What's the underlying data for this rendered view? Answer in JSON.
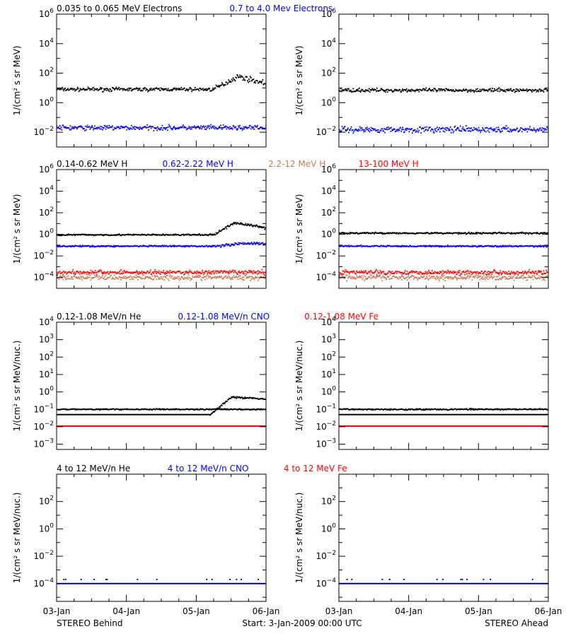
{
  "colors": {
    "black": "#000000",
    "blue": "#0000ff",
    "tan": "#c87c5a",
    "red": "#ff0000"
  },
  "x_tick_labels": [
    "03-Jan",
    "04-Jan",
    "05-Jan",
    "06-Jan"
  ],
  "footer": {
    "left": "STEREO Behind",
    "center": "Start:  3-Jan-2009 00:00 UTC",
    "right": "STEREO Ahead"
  },
  "chart_data": [
    {
      "type": "scatter",
      "panel": "row1-left",
      "legend": [
        {
          "label": "0.035 to 0.065 MeV Electrons",
          "color": "#000000"
        },
        {
          "label": "0.7 to 4.0 Mev Electrons",
          "color": "#0000ff"
        }
      ],
      "ylabel": "1/(cm² s sr MeV)",
      "yscale": "log",
      "ylim": [
        0.001,
        1000000
      ],
      "ytick_exponents": [
        -2,
        0,
        2,
        4,
        6
      ],
      "xlim": [
        0,
        3
      ],
      "series": [
        {
          "color": "#000000",
          "base": 8,
          "spread": 0.18,
          "event": {
            "start": 2.25,
            "peak_x": 2.6,
            "peak": 60,
            "end_level": 20
          }
        },
        {
          "color": "#0000ff",
          "base": 0.02,
          "spread": 0.25
        }
      ]
    },
    {
      "type": "scatter",
      "panel": "row1-right",
      "ylabel": "1/(cm² s sr MeV)",
      "yscale": "log",
      "ylim": [
        0.001,
        1000000
      ],
      "ytick_exponents": [
        -2,
        0,
        2,
        4,
        6
      ],
      "xlim": [
        0,
        3
      ],
      "series": [
        {
          "color": "#000000",
          "base": 7,
          "spread": 0.18
        },
        {
          "color": "#0000ff",
          "base": 0.015,
          "spread": 0.3
        }
      ]
    },
    {
      "type": "scatter",
      "panel": "row2-left",
      "legend": [
        {
          "label": "0.14-0.62 MeV H",
          "color": "#000000"
        },
        {
          "label": "0.62-2.22 MeV H",
          "color": "#0000ff"
        },
        {
          "label": "2.2-12 MeV H",
          "color": "#c87c5a"
        },
        {
          "label": "13-100 MeV H",
          "color": "#ff0000"
        }
      ],
      "ylabel": "1/(cm² s sr MeV)",
      "yscale": "log",
      "ylim": [
        1e-05,
        1000000
      ],
      "ytick_exponents": [
        -4,
        -2,
        0,
        2,
        4,
        6
      ],
      "xlim": [
        0,
        3
      ],
      "series": [
        {
          "color": "#000000",
          "base": 0.9,
          "spread": 0.1,
          "event": {
            "start": 2.25,
            "peak_x": 2.55,
            "peak": 12,
            "end_level": 4
          }
        },
        {
          "color": "#0000ff",
          "base": 0.08,
          "spread": 0.1,
          "event": {
            "start": 2.25,
            "peak_x": 2.7,
            "peak": 0.15,
            "end_level": 0.13
          }
        },
        {
          "color": "#c87c5a",
          "base": 0.0001,
          "spread": 0.35
        },
        {
          "color": "#ff0000",
          "base": 0.0003,
          "spread": 0.3
        }
      ]
    },
    {
      "type": "scatter",
      "panel": "row2-right",
      "ylabel": "1/(cm² s sr MeV)",
      "yscale": "log",
      "ylim": [
        1e-05,
        1000000
      ],
      "ytick_exponents": [
        -4,
        -2,
        0,
        2,
        4,
        6
      ],
      "xlim": [
        0,
        3
      ],
      "series": [
        {
          "color": "#000000",
          "base": 1.3,
          "spread": 0.12
        },
        {
          "color": "#0000ff",
          "base": 0.08,
          "spread": 0.1
        },
        {
          "color": "#c87c5a",
          "base": 0.0001,
          "spread": 0.35
        },
        {
          "color": "#ff0000",
          "base": 0.0003,
          "spread": 0.3
        }
      ]
    },
    {
      "type": "scatter",
      "panel": "row3-left",
      "legend": [
        {
          "label": "0.12-1.08 MeV/n He",
          "color": "#000000"
        },
        {
          "label": "0.12-1.08 MeV/n CNO",
          "color": "#0000ff"
        },
        {
          "label": "0.12-1.08 MeV Fe",
          "color": "#ff0000"
        }
      ],
      "ylabel": "1/(cm² s sr MeV/nuc.)",
      "yscale": "log",
      "ylim": [
        0.0005,
        10000
      ],
      "ytick_exponents": [
        -3,
        -2,
        -1,
        0,
        1,
        2,
        3,
        4
      ],
      "xlim": [
        0,
        3
      ],
      "series": [
        {
          "color": "#000000",
          "base": 0.05,
          "spread": 0.0,
          "event": {
            "start": 2.2,
            "peak_x": 2.5,
            "peak": 0.5,
            "end_level": 0.4
          }
        },
        {
          "color": "#000000",
          "base": 0.1,
          "spread": 0.05
        },
        {
          "color": "#0000ff",
          "base": 0.011,
          "spread": 0.0
        },
        {
          "color": "#ff0000",
          "base": 0.011,
          "spread": 0.0
        }
      ]
    },
    {
      "type": "scatter",
      "panel": "row3-right",
      "ylabel": "1/(cm² s sr MeV/nuc.)",
      "yscale": "log",
      "ylim": [
        0.0005,
        10000
      ],
      "ytick_exponents": [
        -3,
        -2,
        -1,
        0,
        1,
        2,
        3,
        4
      ],
      "xlim": [
        0,
        3
      ],
      "series": [
        {
          "color": "#000000",
          "base": 0.05,
          "spread": 0.0
        },
        {
          "color": "#000000",
          "base": 0.1,
          "spread": 0.06
        },
        {
          "color": "#0000ff",
          "base": 0.011,
          "spread": 0.0
        },
        {
          "color": "#ff0000",
          "base": 0.011,
          "spread": 0.0
        }
      ]
    },
    {
      "type": "scatter",
      "panel": "row4-left",
      "legend": [
        {
          "label": "4 to 12 MeV/n He",
          "color": "#000000"
        },
        {
          "label": "4 to 12 MeV/n CNO",
          "color": "#0000ff"
        },
        {
          "label": "4 to 12 MeV Fe",
          "color": "#ff0000"
        }
      ],
      "ylabel": "1/(cm² s sr MeV/nuc.)",
      "yscale": "log",
      "ylim": [
        5e-06,
        10000
      ],
      "ytick_exponents": [
        -4,
        -2,
        0,
        2
      ],
      "xlim": [
        0,
        3
      ],
      "series": [
        {
          "color": "#0000ff",
          "base": 0.0001,
          "spread": 0.0
        },
        {
          "color": "#000000",
          "base": 0.0002,
          "spread": 0.0,
          "sparse": true
        }
      ]
    },
    {
      "type": "scatter",
      "panel": "row4-right",
      "ylabel": "1/(cm² s sr MeV/nuc.)",
      "yscale": "log",
      "ylim": [
        5e-06,
        10000
      ],
      "ytick_exponents": [
        -4,
        -2,
        0,
        2
      ],
      "xlim": [
        0,
        3
      ],
      "series": [
        {
          "color": "#0000ff",
          "base": 0.0001,
          "spread": 0.0
        },
        {
          "color": "#000000",
          "base": 0.0002,
          "spread": 0.0,
          "sparse": true
        }
      ]
    }
  ]
}
